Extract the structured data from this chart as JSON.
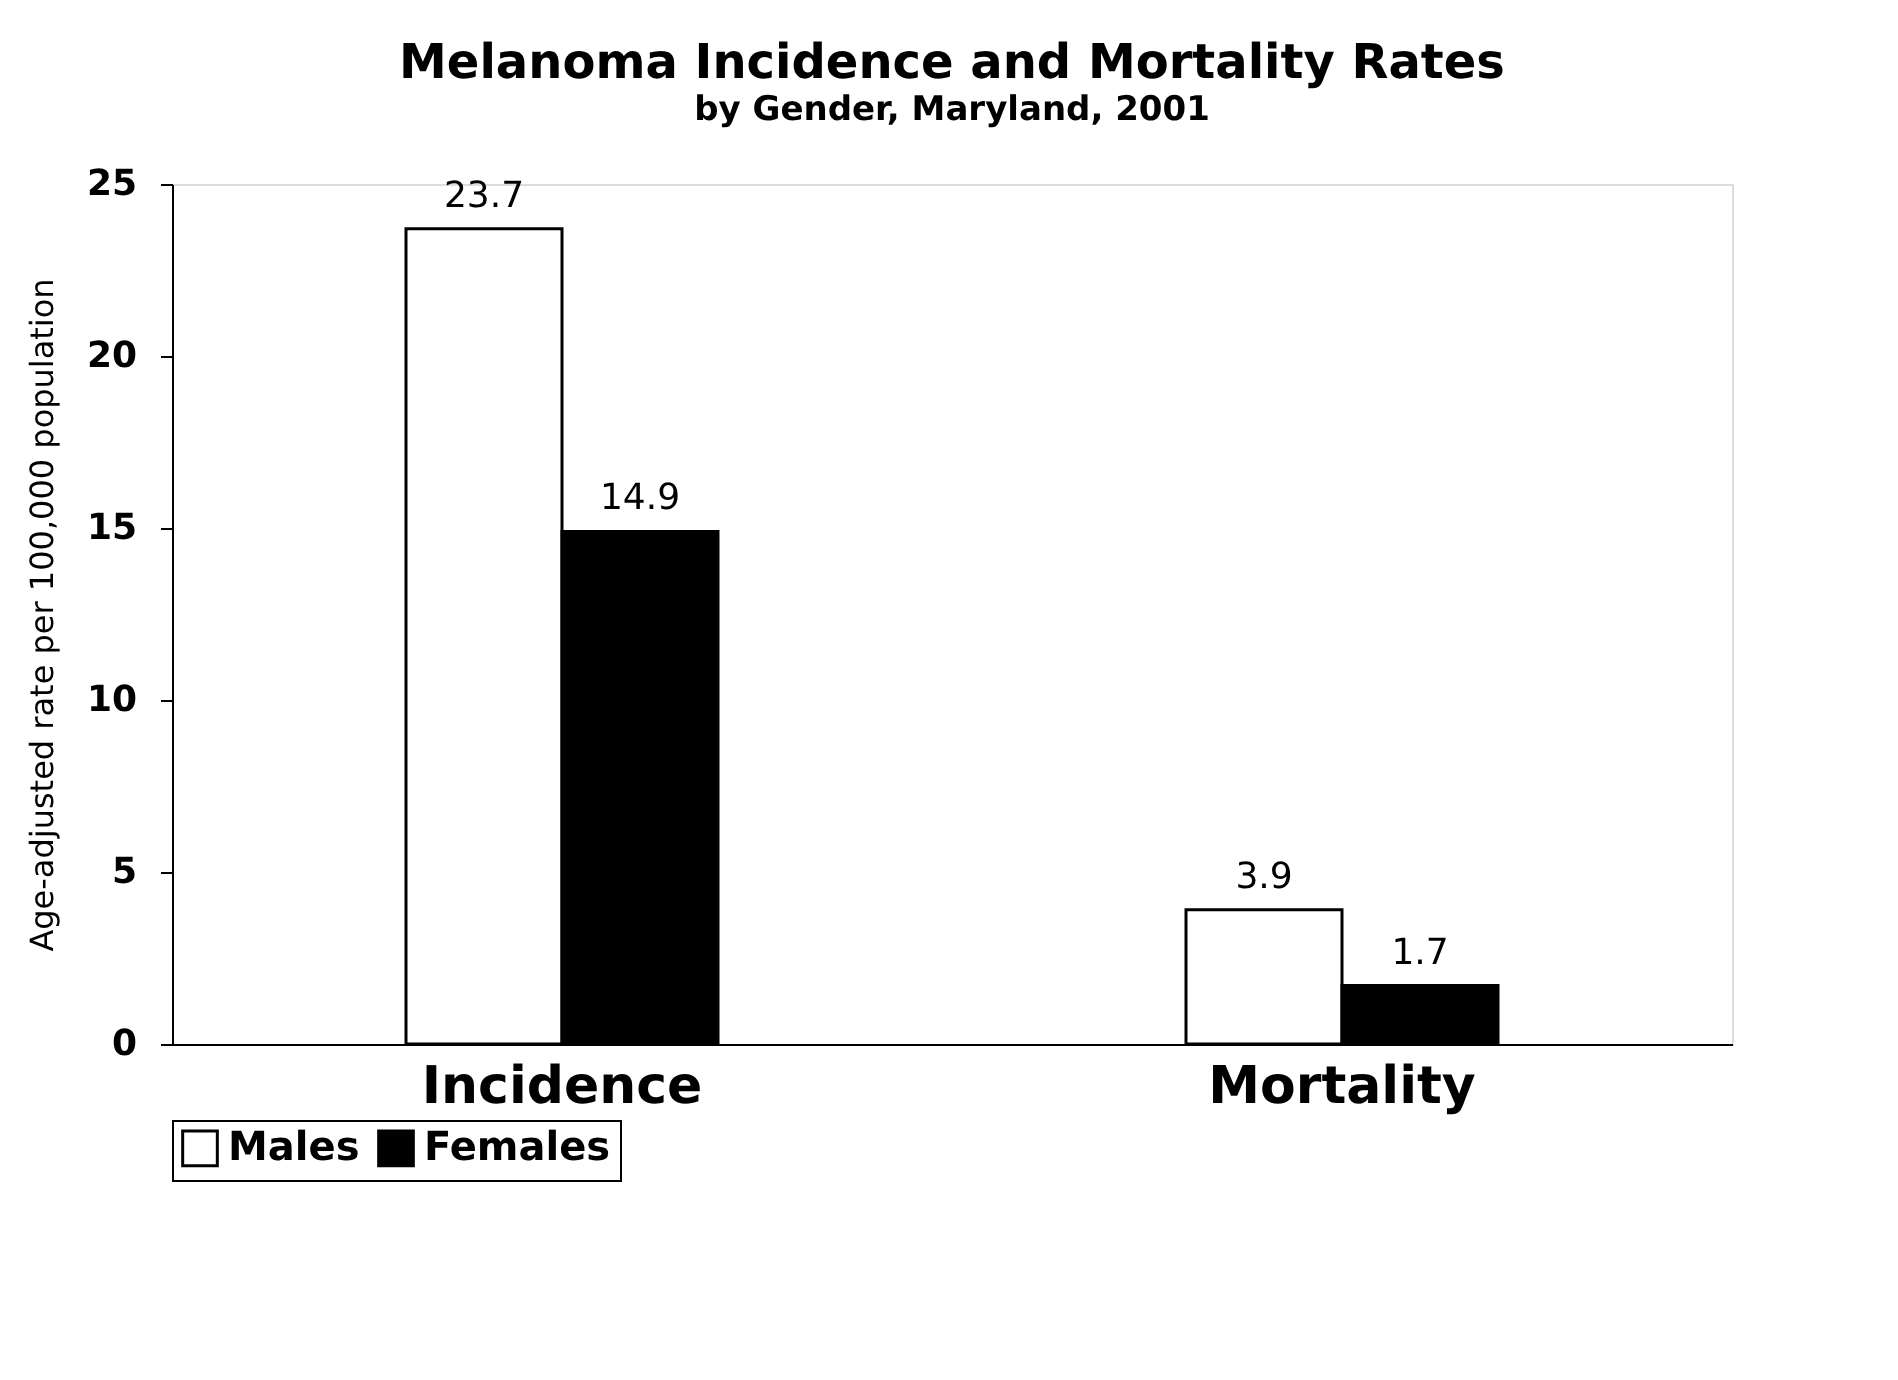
{
  "chart_data": {
    "type": "bar",
    "title": "Melanoma Incidence and Mortality Rates",
    "subtitle": "by Gender, Maryland, 2001",
    "ylabel": "Age-adjusted rate per 100,000 population",
    "categories": [
      "Incidence",
      "Mortality"
    ],
    "series": [
      {
        "name": "Males",
        "color": "#ffffff",
        "values": [
          23.7,
          3.9
        ]
      },
      {
        "name": "Females",
        "color": "#000000",
        "values": [
          14.9,
          1.7
        ]
      }
    ],
    "ylim": [
      0,
      25
    ],
    "yticks": [
      0,
      5,
      10,
      15,
      20,
      25
    ],
    "grid": false,
    "legend": "bottom",
    "data_labels": true
  }
}
